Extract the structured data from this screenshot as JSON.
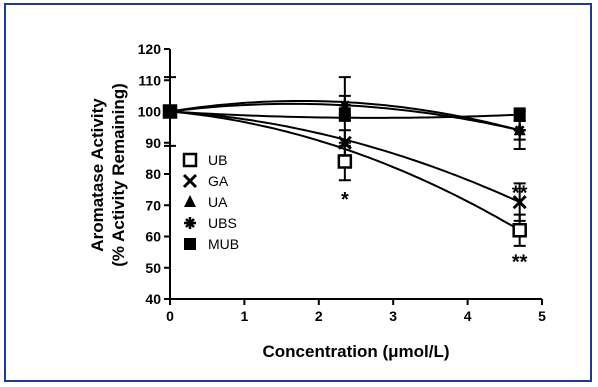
{
  "chart_data": {
    "type": "scatter",
    "title": "",
    "xlabel": "Concentration (μmol/L)",
    "ylabel_line1": "Aromatase Activity",
    "ylabel_line2": "(% Activity Remaining)",
    "xlim": [
      0,
      5
    ],
    "ylim": [
      40,
      120
    ],
    "x_ticks": [
      "0",
      "1",
      "2",
      "3",
      "4",
      "5"
    ],
    "y_ticks": [
      "40",
      "50",
      "60",
      "70",
      "80",
      "90",
      "100",
      "110",
      "120"
    ],
    "grid": false,
    "legend_position": "left-center",
    "x": [
      0,
      2.35,
      4.7
    ],
    "series": [
      {
        "name": "UB",
        "marker": "open-square",
        "values": [
          100,
          84,
          62
        ],
        "errors": [
          1.5,
          6,
          5
        ],
        "fit": [
          100,
          88,
          62
        ]
      },
      {
        "name": "GA",
        "marker": "x",
        "values": [
          100,
          90,
          71
        ],
        "errors": [
          1.5,
          4,
          6
        ],
        "fit": [
          100,
          91,
          71
        ]
      },
      {
        "name": "UA",
        "marker": "triangle",
        "values": [
          100,
          100,
          94
        ],
        "errors": [
          11,
          11,
          6
        ],
        "fit": [
          100,
          102,
          94
        ]
      },
      {
        "name": "UBS",
        "marker": "asterisk",
        "values": [
          100,
          102,
          94
        ],
        "errors": [
          1.5,
          3,
          3
        ],
        "fit": [
          100,
          103,
          94
        ]
      },
      {
        "name": "MUB",
        "marker": "filled-square",
        "values": [
          100,
          99,
          99
        ],
        "errors": [
          1.5,
          2,
          2
        ],
        "fit": [
          100,
          98,
          99
        ]
      }
    ],
    "annotations": [
      {
        "text": "*",
        "x": 2.35,
        "y": 73
      },
      {
        "text": "**",
        "x": 4.7,
        "y": 75
      },
      {
        "text": "**",
        "x": 4.7,
        "y": 53
      }
    ]
  }
}
